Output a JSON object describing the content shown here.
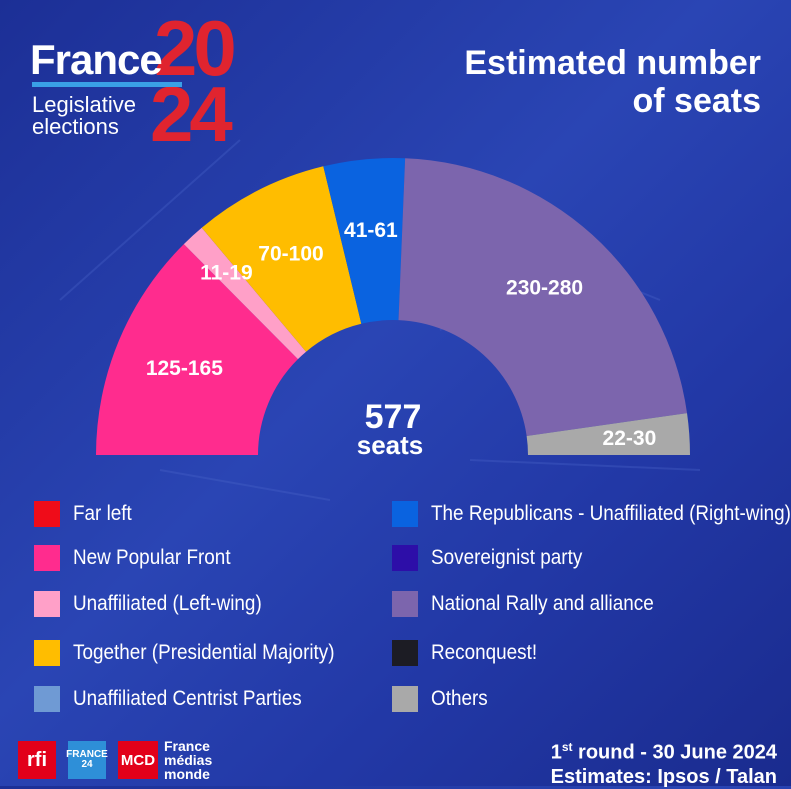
{
  "logo": {
    "france": "France",
    "year_top": "20",
    "year_bottom": "24",
    "subtitle_line1": "Legislative",
    "subtitle_line2": "elections"
  },
  "headline": {
    "line1": "Estimated number",
    "line2": "of seats"
  },
  "chart_data": {
    "type": "pie",
    "subtype": "semicircle",
    "title": "Estimated number of seats",
    "total": {
      "value": "577",
      "label": "seats"
    },
    "segments": [
      {
        "name": "New Popular Front",
        "label": "125-165",
        "value": 145,
        "color": "#ff2c8e"
      },
      {
        "name": "Unaffiliated (Left-wing)",
        "label": "11-19",
        "value": 15,
        "color": "#ffa0c8"
      },
      {
        "name": "Together (Presidential Majority)",
        "label": "70-100",
        "value": 85,
        "color": "#ffbd00"
      },
      {
        "name": "The Republicans - Unaffiliated (Right-wing)",
        "label": "41-61",
        "value": 51,
        "color": "#0a63e0"
      },
      {
        "name": "National Rally and alliance",
        "label": "230-280",
        "value": 255,
        "color": "#7c65ad"
      },
      {
        "name": "Others",
        "label": "22-30",
        "value": 26,
        "color": "#a9a9a9"
      }
    ]
  },
  "legend": {
    "left": [
      {
        "label": "Far left",
        "color": "#ef0c19"
      },
      {
        "label": "New Popular Front",
        "color": "#ff2c8e"
      },
      {
        "label": "Unaffiliated (Left-wing)",
        "color": "#ffa0c8"
      },
      {
        "label": "Together (Presidential Majority)",
        "color": "#ffbd00"
      },
      {
        "label": "Unaffiliated Centrist Parties",
        "color": "#6f9ad4"
      }
    ],
    "right": [
      {
        "label": "The Republicans - Unaffiliated (Right-wing)",
        "color": "#0a63e0"
      },
      {
        "label": "Sovereignist party",
        "color": "#2d0ea8"
      },
      {
        "label": "National Rally and alliance",
        "color": "#7c65ad"
      },
      {
        "label": "Reconquest!",
        "color": "#1c1c24"
      },
      {
        "label": "Others",
        "color": "#a9a9a9"
      }
    ]
  },
  "footer": {
    "rfi": "rfi",
    "f24_top": "FRANCE",
    "f24_bottom": "24",
    "mcd": "MCD",
    "fmm_line1": "France",
    "fmm_line2": "médias",
    "fmm_line3": "monde",
    "round_num": "1",
    "round_sup": "st",
    "round_rest": " round - 30 June 2024",
    "estimates": "Estimates: Ipsos / Talan"
  }
}
